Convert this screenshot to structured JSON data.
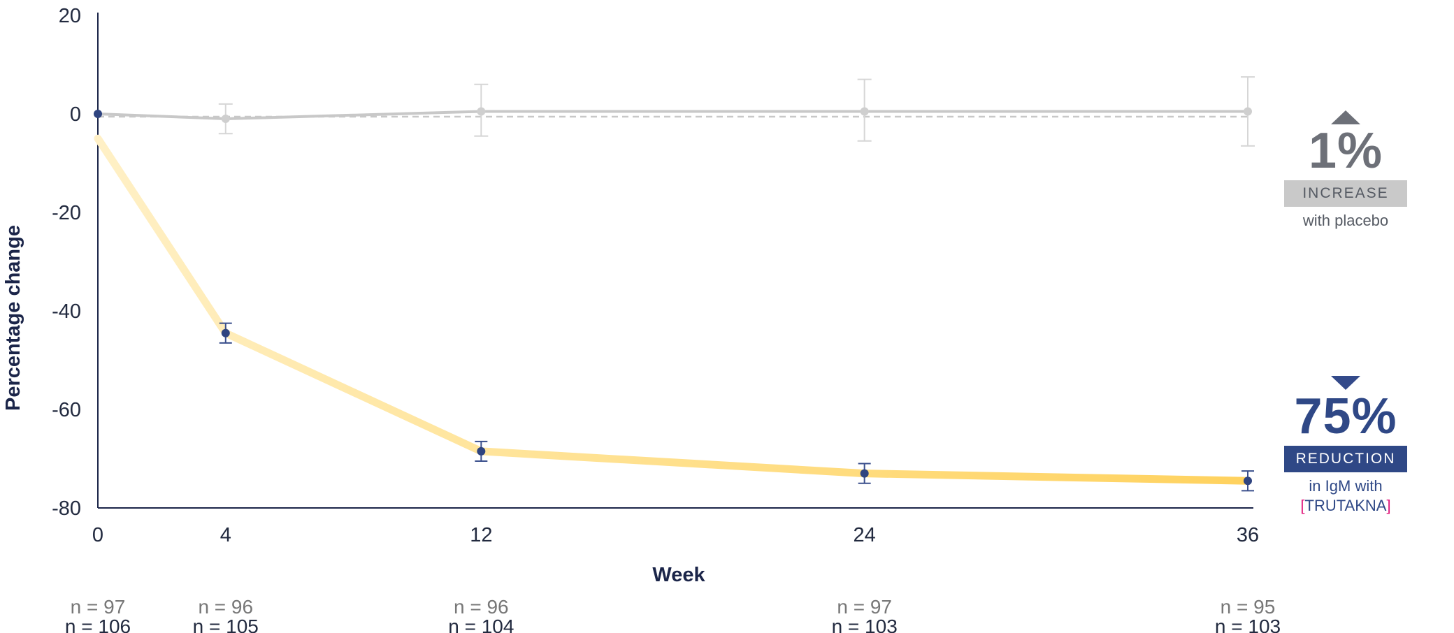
{
  "chart_data": {
    "type": "line",
    "xlabel": "Week",
    "ylabel": "Percentage change",
    "ylim": [
      -80,
      20
    ],
    "yticks": [
      "20",
      "0",
      "-20",
      "-40",
      "-60",
      "-80"
    ],
    "xticks": [
      "0",
      "4",
      "12",
      "24",
      "36"
    ],
    "x": [
      0,
      4,
      12,
      24,
      36
    ],
    "series": [
      {
        "key": "placebo",
        "color": "#c8c8c8",
        "values": [
          0,
          -1,
          0.5,
          0.5,
          0.5
        ],
        "err_low": [
          0,
          -4,
          -4.5,
          -5.5,
          -6.5
        ],
        "err_high": [
          0,
          2,
          6,
          7,
          7.5
        ],
        "n": [
          "n = 97",
          "n = 96",
          "n = 96",
          "n = 97",
          "n = 95"
        ]
      },
      {
        "key": "drug",
        "color": "#ffd25e",
        "values": [
          0,
          -44.5,
          -68.5,
          -73,
          -74.5
        ],
        "err_low": [
          0,
          -46.5,
          -70.5,
          -75,
          -76.5
        ],
        "err_high": [
          0,
          -42.5,
          -66.5,
          -71,
          -72.5
        ],
        "n": [
          "n = 106",
          "n = 105",
          "n = 104",
          "n = 103",
          "n = 103"
        ]
      }
    ]
  },
  "callouts": {
    "placebo": {
      "value": "1%",
      "label": "INCREASE",
      "caption": "with placebo"
    },
    "drug": {
      "value": "75%",
      "label": "REDUCTION",
      "caption_line1": "in IgM with",
      "bracket_open": "[",
      "drug_name": "TRUTAKNA",
      "bracket_close": "]"
    }
  }
}
